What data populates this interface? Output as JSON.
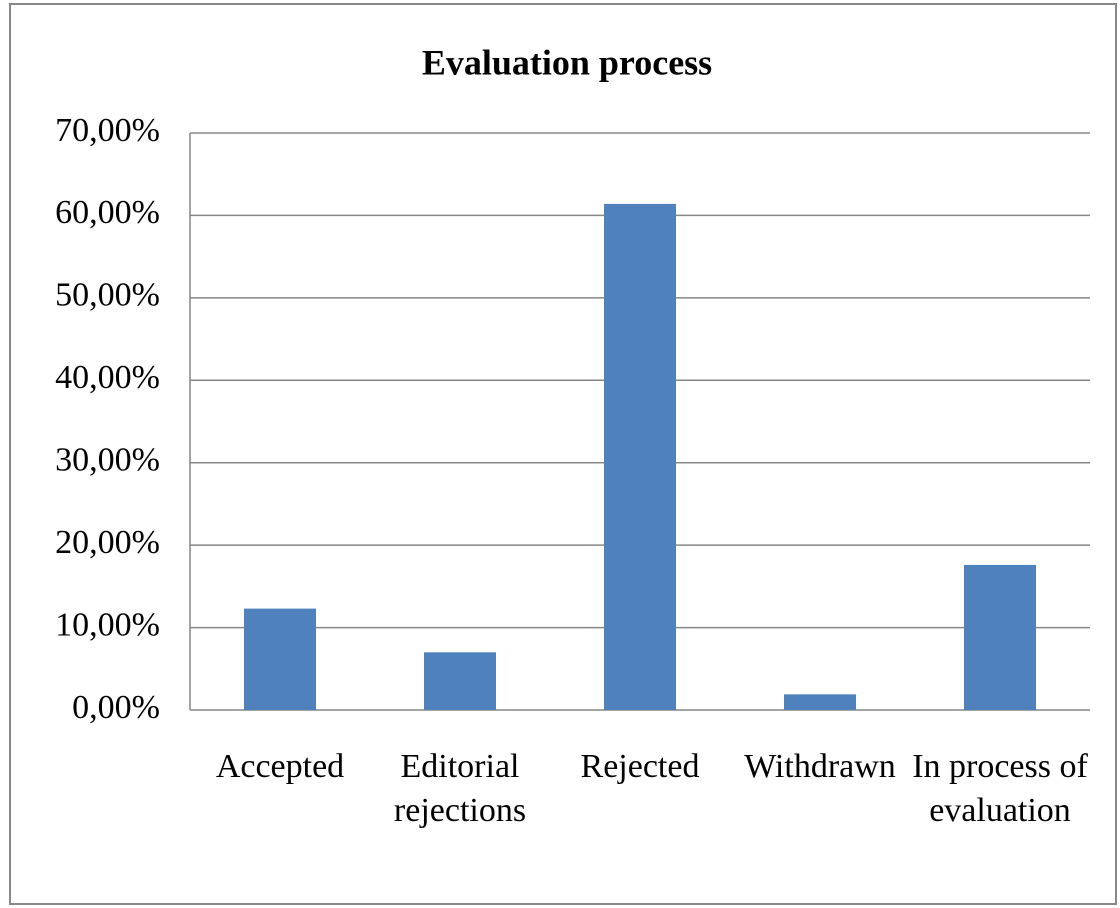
{
  "chart_data": {
    "type": "bar",
    "title": "Evaluation process",
    "categories": [
      "Accepted",
      "Editorial rejections",
      "Rejected",
      "Withdrawn",
      "In process of evaluation"
    ],
    "values": [
      12.3,
      7.0,
      61.4,
      1.9,
      17.6
    ],
    "color": "#4f81bd",
    "ylim": [
      0,
      70
    ],
    "yticks": [
      {
        "value": 0,
        "label": "0,00%"
      },
      {
        "value": 10,
        "label": "10,00%"
      },
      {
        "value": 20,
        "label": "20,00%"
      },
      {
        "value": 30,
        "label": "30,00%"
      },
      {
        "value": 40,
        "label": "40,00%"
      },
      {
        "value": 50,
        "label": "50,00%"
      },
      {
        "value": 60,
        "label": "60,00%"
      },
      {
        "value": 70,
        "label": "70,00%"
      }
    ],
    "grid": true
  }
}
